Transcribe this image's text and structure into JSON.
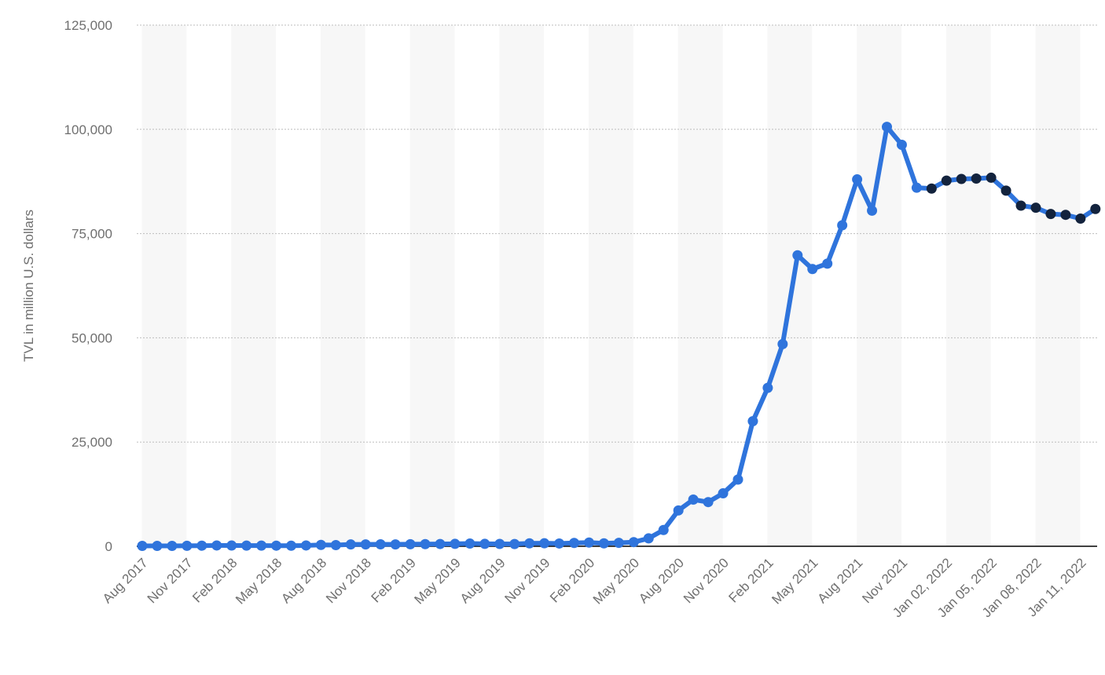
{
  "chart_data": {
    "type": "line",
    "title": "",
    "xlabel": "",
    "ylabel": "TVL in million U.S. dollars",
    "ylim": [
      0,
      125000
    ],
    "yticks": [
      0,
      25000,
      50000,
      75000,
      100000,
      125000
    ],
    "ytick_labels": [
      "0",
      "25,000",
      "50,000",
      "75,000",
      "100,000",
      "125,000"
    ],
    "grid": true,
    "legend": "none",
    "colors": {
      "line": "#2f74dc",
      "point_monthly": "#2f74dc",
      "point_daily": "#13233d",
      "grid": "#bdbdbd",
      "band": "#f7f7f7",
      "axis": "#000000"
    },
    "x_tick_labels": [
      "Aug 2017",
      "Nov 2017",
      "Feb 2018",
      "May 2018",
      "Aug 2018",
      "Nov 2018",
      "Feb 2019",
      "May 2019",
      "Aug 2019",
      "Nov 2019",
      "Feb 2020",
      "May 2020",
      "Aug 2020",
      "Nov 2020",
      "Feb 2021",
      "May 2021",
      "Aug 2021",
      "Nov 2021",
      "Jan 02, 2022",
      "Jan 05, 2022",
      "Jan 08, 2022",
      "Jan 11, 2022"
    ],
    "series": [
      {
        "x": [
          "Aug 2017",
          "Sep 2017",
          "Oct 2017",
          "Nov 2017",
          "Dec 2017",
          "Jan 2018",
          "Feb 2018",
          "Mar 2018",
          "Apr 2018",
          "May 2018",
          "Jun 2018",
          "Jul 2018",
          "Aug 2018",
          "Sep 2018",
          "Oct 2018",
          "Nov 2018",
          "Dec 2018",
          "Jan 2019",
          "Feb 2019",
          "Mar 2019",
          "Apr 2019",
          "May 2019",
          "Jun 2019",
          "Jul 2019",
          "Aug 2019",
          "Sep 2019",
          "Oct 2019",
          "Nov 2019",
          "Dec 2019",
          "Jan 2020",
          "Feb 2020",
          "Mar 2020",
          "Apr 2020",
          "May 2020",
          "Jun 2020",
          "Jul 2020",
          "Aug 2020",
          "Sep 2020",
          "Oct 2020",
          "Nov 2020",
          "Dec 2020",
          "Jan 2021",
          "Feb 2021",
          "Mar 2021",
          "Apr 2021",
          "May 2021",
          "Jun 2021",
          "Jul 2021",
          "Aug 2021",
          "Sep 2021",
          "Oct 2021",
          "Nov 2021",
          "Dec 2021",
          "Jan 01, 2022",
          "Jan 02, 2022",
          "Jan 03, 2022",
          "Jan 04, 2022",
          "Jan 05, 2022",
          "Jan 06, 2022",
          "Jan 07, 2022",
          "Jan 08, 2022",
          "Jan 09, 2022",
          "Jan 10, 2022",
          "Jan 11, 2022",
          "Jan 12, 2022"
        ],
        "values": [
          100,
          100,
          100,
          120,
          150,
          200,
          180,
          170,
          160,
          150,
          130,
          200,
          330,
          280,
          440,
          450,
          470,
          450,
          500,
          520,
          550,
          580,
          650,
          580,
          570,
          540,
          700,
          720,
          670,
          800,
          900,
          700,
          820,
          1000,
          1900,
          3900,
          8600,
          11200,
          10600,
          12700,
          16000,
          30000,
          38000,
          48500,
          69800,
          66500,
          67800,
          77000,
          88000,
          80500,
          100600,
          96300,
          86000,
          85800,
          87700,
          88100,
          88200,
          88400,
          85300,
          81700,
          81200,
          79700,
          79500,
          78600,
          80900
        ],
        "point_style": [
          "monthly",
          "monthly",
          "monthly",
          "monthly",
          "monthly",
          "monthly",
          "monthly",
          "monthly",
          "monthly",
          "monthly",
          "monthly",
          "monthly",
          "monthly",
          "monthly",
          "monthly",
          "monthly",
          "monthly",
          "monthly",
          "monthly",
          "monthly",
          "monthly",
          "monthly",
          "monthly",
          "monthly",
          "monthly",
          "monthly",
          "monthly",
          "monthly",
          "monthly",
          "monthly",
          "monthly",
          "monthly",
          "monthly",
          "monthly",
          "monthly",
          "monthly",
          "monthly",
          "monthly",
          "monthly",
          "monthly",
          "monthly",
          "monthly",
          "monthly",
          "monthly",
          "monthly",
          "monthly",
          "monthly",
          "monthly",
          "monthly",
          "monthly",
          "monthly",
          "monthly",
          "monthly",
          "daily",
          "daily",
          "daily",
          "daily",
          "daily",
          "daily",
          "daily",
          "daily",
          "daily",
          "daily",
          "daily",
          "daily"
        ]
      }
    ]
  }
}
